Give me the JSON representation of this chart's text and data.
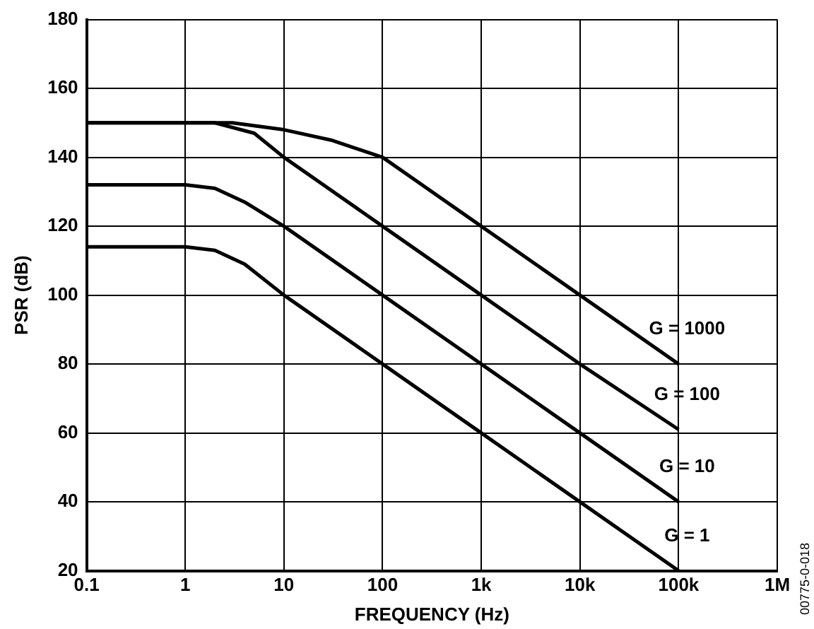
{
  "chart_data": {
    "type": "line",
    "xlabel": "FREQUENCY (Hz)",
    "ylabel": "PSR (dB)",
    "log": "x",
    "grid": true,
    "legend": false,
    "marker": "none",
    "line_style": "solid",
    "xlim": [
      0.1,
      1000000
    ],
    "ylim": [
      20,
      180
    ],
    "xticks": [
      {
        "value": 0.1,
        "label": "0.1"
      },
      {
        "value": 1,
        "label": "1"
      },
      {
        "value": 10,
        "label": "10"
      },
      {
        "value": 100,
        "label": "100"
      },
      {
        "value": 1000,
        "label": "1k"
      },
      {
        "value": 10000,
        "label": "10k"
      },
      {
        "value": 100000,
        "label": "100k"
      },
      {
        "value": 1000000,
        "label": "1M"
      }
    ],
    "yticks": [
      20,
      40,
      60,
      80,
      100,
      120,
      140,
      160,
      180
    ],
    "series": [
      {
        "name": "G = 1000",
        "color": "#000000",
        "x": [
          0.1,
          1,
          3,
          10,
          30,
          100,
          1000,
          10000,
          100000
        ],
        "values": [
          150,
          150,
          150,
          148,
          145,
          140,
          120,
          100,
          80
        ]
      },
      {
        "name": "G = 100",
        "color": "#000000",
        "x": [
          0.1,
          1,
          2,
          5,
          10,
          100,
          1000,
          10000,
          100000
        ],
        "values": [
          150,
          150,
          150,
          147,
          140,
          120,
          100,
          80,
          61
        ]
      },
      {
        "name": "G = 10",
        "color": "#000000",
        "x": [
          0.1,
          1,
          2,
          4,
          10,
          100,
          1000,
          10000,
          100000
        ],
        "values": [
          132,
          132,
          131,
          127,
          120,
          100,
          80,
          60,
          40
        ]
      },
      {
        "name": "G = 1",
        "color": "#000000",
        "x": [
          0.1,
          1,
          2,
          4,
          10,
          100,
          1000,
          10000,
          100000
        ],
        "values": [
          114,
          114,
          113,
          109,
          100,
          80,
          60,
          40,
          20
        ]
      }
    ],
    "annotations": [
      "00775-0-018"
    ]
  }
}
